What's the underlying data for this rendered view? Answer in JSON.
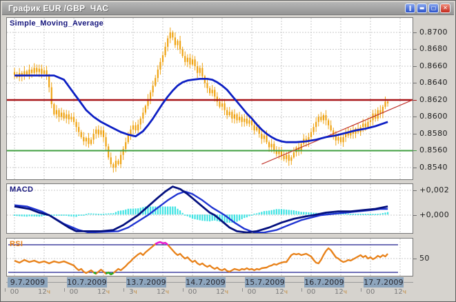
{
  "window": {
    "title": "График EUR /GBP  ЧАС",
    "controls": [
      {
        "name": "pause",
        "glyph": "‖",
        "style": "blue"
      },
      {
        "name": "minimize",
        "glyph": "▬",
        "style": "blue"
      },
      {
        "name": "maximize",
        "glyph": "▢",
        "style": "blue"
      },
      {
        "name": "close",
        "glyph": "✕",
        "style": "red"
      }
    ]
  },
  "panels": {
    "main": {
      "label": "Simple_Moving_Average"
    },
    "macd": {
      "label": "MACD"
    },
    "rsi": {
      "label": "RSI"
    }
  },
  "price_scale": {
    "ticks": [
      {
        "text": "0.8700",
        "price": 0.87
      },
      {
        "text": "0.8680",
        "price": 0.868
      },
      {
        "text": "0.8660",
        "price": 0.866
      },
      {
        "text": "0.8640",
        "price": 0.864
      },
      {
        "text": "0.8620",
        "price": 0.862
      },
      {
        "text": "0.8600",
        "price": 0.86
      },
      {
        "text": "0.8580",
        "price": 0.858
      },
      {
        "text": "0.8560",
        "price": 0.856
      },
      {
        "text": "0.8540",
        "price": 0.854
      }
    ]
  },
  "macd_scale": {
    "ticks": [
      {
        "text": "+0,002",
        "value": 0.002
      },
      {
        "text": "+0,000",
        "value": 0.0
      }
    ]
  },
  "rsi_scale": {
    "ticks": [
      {
        "text": "50",
        "value": 50
      }
    ]
  },
  "x_axis": {
    "days": [
      {
        "date": "9.7.2009",
        "times": [
          "00",
          "12ч"
        ]
      },
      {
        "date": "10.7.2009",
        "times": [
          "00",
          "12ч"
        ]
      },
      {
        "date": "13.7.2009",
        "times": [
          "3ч",
          "12ч"
        ]
      },
      {
        "date": "14.7.2009",
        "times": [
          "00",
          "12ч"
        ]
      },
      {
        "date": "15.7.2009",
        "times": [
          "00",
          "12ч"
        ]
      },
      {
        "date": "16.7.2009",
        "times": [
          "00",
          "12ч"
        ]
      },
      {
        "date": "17.7.2009",
        "times": [
          "00",
          "12ч"
        ]
      }
    ]
  },
  "colors": {
    "candle": "#efa312",
    "sma": "#0d1fc4",
    "macd": "#04107e",
    "signal": "#1f34d2",
    "histogram": "#3fe3e3",
    "resistance": "#a81418",
    "support": "#3f9f3f",
    "trendline": "#c03028",
    "rsi": "#e8821a",
    "rsi_overbought": "#e816d8",
    "rsi_oversold": "#22b022",
    "rsi_levels": "#1a1a8c",
    "grid": "#c9c9c9",
    "date_box_bg": "#8da5bd",
    "time_label": "#7a7a7a",
    "hour_suffix": "#c08a3e"
  },
  "chart_data": [
    {
      "type": "candlestick",
      "pair": "EUR/GBP",
      "timeframe": "1 hour",
      "overlay": "Simple_Moving_Average",
      "x_start": "9.7.2009 00:00",
      "x_end": "17.7.2009 08:00",
      "hours_per_candle": 1,
      "ylim": [
        0.8527,
        0.8717
      ],
      "y_ticks": [
        0.87,
        0.868,
        0.866,
        0.864,
        0.862,
        0.86,
        0.858,
        0.856,
        0.854
      ],
      "resistance_level": 0.862,
      "support_level": 0.856,
      "trendline": {
        "from_hour": 100,
        "from_price": 0.8544,
        "to_hour": 161,
        "to_price": 0.862
      },
      "closes": [
        0.865,
        0.8647,
        0.8652,
        0.8648,
        0.8654,
        0.865,
        0.8656,
        0.8652,
        0.8658,
        0.8653,
        0.8657,
        0.8651,
        0.8655,
        0.8648,
        0.8635,
        0.8615,
        0.8603,
        0.8608,
        0.86,
        0.8605,
        0.8598,
        0.8603,
        0.8597,
        0.86,
        0.8594,
        0.8588,
        0.8582,
        0.8576,
        0.8571,
        0.8575,
        0.8568,
        0.8573,
        0.858,
        0.8585,
        0.8579,
        0.8584,
        0.8576,
        0.8565,
        0.8552,
        0.8544,
        0.854,
        0.8548,
        0.8544,
        0.8555,
        0.8562,
        0.857,
        0.8578,
        0.8585,
        0.859,
        0.8584,
        0.8591,
        0.8598,
        0.8605,
        0.8613,
        0.8621,
        0.8629,
        0.8637,
        0.8646,
        0.8656,
        0.8665,
        0.8673,
        0.8683,
        0.8693,
        0.87,
        0.8694,
        0.8685,
        0.869,
        0.868,
        0.8672,
        0.8665,
        0.867,
        0.8662,
        0.8668,
        0.866,
        0.8652,
        0.8658,
        0.8648,
        0.864,
        0.8634,
        0.8628,
        0.8632,
        0.8624,
        0.8618,
        0.8612,
        0.8616,
        0.8608,
        0.8602,
        0.8606,
        0.8598,
        0.8603,
        0.8596,
        0.86,
        0.8594,
        0.8598,
        0.8592,
        0.8596,
        0.859,
        0.8584,
        0.8588,
        0.858,
        0.8574,
        0.8578,
        0.857,
        0.8564,
        0.8568,
        0.856,
        0.8556,
        0.856,
        0.8554,
        0.855,
        0.8555,
        0.8548,
        0.8552,
        0.8558,
        0.8564,
        0.856,
        0.8568,
        0.8574,
        0.857,
        0.8576,
        0.8582,
        0.8588,
        0.8594,
        0.86,
        0.8596,
        0.8602,
        0.8596,
        0.859,
        0.8584,
        0.8578,
        0.8572,
        0.8576,
        0.857,
        0.8576,
        0.8582,
        0.8578,
        0.8584,
        0.858,
        0.8586,
        0.8582,
        0.8588,
        0.8592,
        0.8588,
        0.8594,
        0.8596,
        0.8604,
        0.8598,
        0.8608,
        0.8604,
        0.8612,
        0.8618,
        0.8616
      ],
      "sma": [
        [
          0,
          0.8649
        ],
        [
          16,
          0.8649
        ],
        [
          20,
          0.8644
        ],
        [
          23,
          0.8632
        ],
        [
          26,
          0.862
        ],
        [
          29,
          0.8608
        ],
        [
          32,
          0.86
        ],
        [
          35,
          0.8594
        ],
        [
          39,
          0.8588
        ],
        [
          43,
          0.8582
        ],
        [
          46,
          0.8579
        ],
        [
          49,
          0.8577
        ],
        [
          52,
          0.8583
        ],
        [
          54,
          0.859
        ],
        [
          56,
          0.8598
        ],
        [
          58,
          0.8607
        ],
        [
          60,
          0.8616
        ],
        [
          62,
          0.8624
        ],
        [
          64,
          0.8631
        ],
        [
          66,
          0.8637
        ],
        [
          68,
          0.8641
        ],
        [
          70,
          0.8643
        ],
        [
          72,
          0.8644
        ],
        [
          75,
          0.8645
        ],
        [
          78,
          0.8645
        ],
        [
          80,
          0.8644
        ],
        [
          82,
          0.8641
        ],
        [
          84,
          0.8637
        ],
        [
          86,
          0.8632
        ],
        [
          88,
          0.8625
        ],
        [
          90,
          0.8618
        ],
        [
          92,
          0.8611
        ],
        [
          94,
          0.8604
        ],
        [
          96,
          0.8598
        ],
        [
          98,
          0.8591
        ],
        [
          100,
          0.8585
        ],
        [
          102,
          0.858
        ],
        [
          104,
          0.8576
        ],
        [
          106,
          0.8573
        ],
        [
          108,
          0.8571
        ],
        [
          110,
          0.857
        ],
        [
          114,
          0.857
        ],
        [
          118,
          0.8571
        ],
        [
          122,
          0.8573
        ],
        [
          126,
          0.8576
        ],
        [
          130,
          0.8578
        ],
        [
          134,
          0.8581
        ],
        [
          138,
          0.8584
        ],
        [
          142,
          0.8586
        ],
        [
          146,
          0.8589
        ],
        [
          149,
          0.8592
        ],
        [
          151,
          0.8594
        ]
      ]
    },
    {
      "type": "line+histogram",
      "name": "MACD",
      "ylim": [
        -0.0014,
        0.0025
      ],
      "y_ticks": [
        0.002,
        0.0
      ],
      "histogram": "macd_minus_signal",
      "macd_line": [
        [
          0,
          0.0007
        ],
        [
          6,
          0.0005
        ],
        [
          10,
          0.0002
        ],
        [
          14,
          0.0
        ],
        [
          18,
          -0.0005
        ],
        [
          22,
          -0.001
        ],
        [
          25,
          -0.0013
        ],
        [
          35,
          -0.0013
        ],
        [
          40,
          -0.0012
        ],
        [
          44,
          -0.0008
        ],
        [
          47,
          -0.0004
        ],
        [
          50,
          0.0
        ],
        [
          54,
          0.0007
        ],
        [
          58,
          0.0014
        ],
        [
          61,
          0.0019
        ],
        [
          64,
          0.0023
        ],
        [
          67,
          0.0021
        ],
        [
          70,
          0.0017
        ],
        [
          73,
          0.0012
        ],
        [
          76,
          0.0007
        ],
        [
          79,
          0.0002
        ],
        [
          81,
          0.0
        ],
        [
          84,
          -0.0005
        ],
        [
          87,
          -0.001
        ],
        [
          90,
          -0.0013
        ],
        [
          94,
          -0.0014
        ],
        [
          98,
          -0.0013
        ],
        [
          103,
          -0.001
        ],
        [
          108,
          -0.0006
        ],
        [
          113,
          -0.0003
        ],
        [
          118,
          -0.0001
        ],
        [
          121,
          0.0
        ],
        [
          126,
          0.0002
        ],
        [
          131,
          0.0003
        ],
        [
          136,
          0.0003
        ],
        [
          141,
          0.0004
        ],
        [
          146,
          0.0005
        ],
        [
          151,
          0.0007
        ]
      ],
      "signal_line": [
        [
          0,
          0.0008
        ],
        [
          5,
          0.0007
        ],
        [
          11,
          0.0003
        ],
        [
          15,
          -0.0001
        ],
        [
          20,
          -0.0007
        ],
        [
          26,
          -0.0012
        ],
        [
          30,
          -0.0014
        ],
        [
          42,
          -0.0013
        ],
        [
          46,
          -0.001
        ],
        [
          50,
          -0.0005
        ],
        [
          54,
          0.0
        ],
        [
          58,
          0.0006
        ],
        [
          62,
          0.0012
        ],
        [
          66,
          0.0017
        ],
        [
          69,
          0.0019
        ],
        [
          72,
          0.0017
        ],
        [
          76,
          0.0012
        ],
        [
          80,
          0.0006
        ],
        [
          85,
          0.0
        ],
        [
          89,
          -0.0006
        ],
        [
          93,
          -0.0011
        ],
        [
          97,
          -0.0014
        ],
        [
          101,
          -0.0014
        ],
        [
          106,
          -0.0012
        ],
        [
          111,
          -0.0008
        ],
        [
          116,
          -0.0004
        ],
        [
          120,
          -0.0002
        ],
        [
          124,
          0.0
        ],
        [
          129,
          0.0001
        ],
        [
          134,
          0.0002
        ],
        [
          139,
          0.0003
        ],
        [
          144,
          0.0004
        ],
        [
          148,
          0.0005
        ],
        [
          151,
          0.0005
        ]
      ]
    },
    {
      "type": "line",
      "name": "RSI",
      "ylim": [
        25,
        79
      ],
      "levels": {
        "overbought": 70,
        "middle": 50,
        "oversold": 30
      },
      "values": [
        [
          0,
          47
        ],
        [
          2,
          44
        ],
        [
          4,
          48
        ],
        [
          6,
          45
        ],
        [
          8,
          47
        ],
        [
          10,
          44
        ],
        [
          12,
          46
        ],
        [
          14,
          43
        ],
        [
          16,
          46
        ],
        [
          18,
          44
        ],
        [
          20,
          46
        ],
        [
          22,
          43
        ],
        [
          24,
          40
        ],
        [
          25,
          36
        ],
        [
          26,
          33
        ],
        [
          27,
          35
        ],
        [
          28,
          31
        ],
        [
          29,
          29
        ],
        [
          30,
          31
        ],
        [
          31,
          33
        ],
        [
          32,
          30
        ],
        [
          33,
          28
        ],
        [
          34,
          31
        ],
        [
          35,
          34
        ],
        [
          36,
          31
        ],
        [
          37,
          28
        ],
        [
          38,
          30
        ],
        [
          39,
          27
        ],
        [
          40,
          29
        ],
        [
          41,
          32
        ],
        [
          42,
          35
        ],
        [
          43,
          33
        ],
        [
          44,
          36
        ],
        [
          45,
          39
        ],
        [
          46,
          43
        ],
        [
          47,
          46
        ],
        [
          48,
          50
        ],
        [
          49,
          53
        ],
        [
          50,
          56
        ],
        [
          51,
          58
        ],
        [
          52,
          55
        ],
        [
          53,
          59
        ],
        [
          54,
          62
        ],
        [
          55,
          65
        ],
        [
          56,
          68
        ],
        [
          57,
          71
        ],
        [
          58,
          73
        ],
        [
          59,
          74
        ],
        [
          60,
          72
        ],
        [
          61,
          73
        ],
        [
          62,
          70
        ],
        [
          63,
          66
        ],
        [
          64,
          62
        ],
        [
          65,
          58
        ],
        [
          66,
          55
        ],
        [
          67,
          57
        ],
        [
          68,
          53
        ],
        [
          69,
          50
        ],
        [
          70,
          52
        ],
        [
          71,
          48
        ],
        [
          72,
          45
        ],
        [
          73,
          47
        ],
        [
          74,
          43
        ],
        [
          75,
          41
        ],
        [
          76,
          43
        ],
        [
          77,
          40
        ],
        [
          78,
          38
        ],
        [
          79,
          40
        ],
        [
          80,
          37
        ],
        [
          81,
          35
        ],
        [
          82,
          37
        ],
        [
          83,
          34
        ],
        [
          84,
          33
        ],
        [
          85,
          35
        ],
        [
          86,
          32
        ],
        [
          87,
          31
        ],
        [
          88,
          33
        ],
        [
          89,
          35
        ],
        [
          90,
          34
        ],
        [
          91,
          33
        ],
        [
          92,
          35
        ],
        [
          93,
          34
        ],
        [
          94,
          36
        ],
        [
          95,
          34
        ],
        [
          96,
          35
        ],
        [
          97,
          33
        ],
        [
          98,
          35
        ],
        [
          99,
          34
        ],
        [
          100,
          36
        ],
        [
          102,
          37
        ],
        [
          103,
          39
        ],
        [
          104,
          40
        ],
        [
          105,
          42
        ],
        [
          106,
          41
        ],
        [
          107,
          43
        ],
        [
          108,
          44
        ],
        [
          109,
          45
        ],
        [
          110,
          45
        ],
        [
          111,
          50
        ],
        [
          112,
          55
        ],
        [
          113,
          57
        ],
        [
          114,
          56
        ],
        [
          115,
          57
        ],
        [
          116,
          55
        ],
        [
          117,
          56
        ],
        [
          118,
          57
        ],
        [
          119,
          55
        ],
        [
          120,
          53
        ],
        [
          121,
          48
        ],
        [
          122,
          44
        ],
        [
          123,
          43
        ],
        [
          124,
          48
        ],
        [
          125,
          55
        ],
        [
          126,
          61
        ],
        [
          127,
          65
        ],
        [
          128,
          62
        ],
        [
          129,
          57
        ],
        [
          130,
          52
        ],
        [
          131,
          50
        ],
        [
          132,
          47
        ],
        [
          133,
          45
        ],
        [
          134,
          46
        ],
        [
          135,
          48
        ],
        [
          136,
          47
        ],
        [
          137,
          49
        ],
        [
          138,
          51
        ],
        [
          139,
          53
        ],
        [
          140,
          55
        ],
        [
          141,
          52
        ],
        [
          142,
          54
        ],
        [
          143,
          50
        ],
        [
          144,
          52
        ],
        [
          145,
          49
        ],
        [
          146,
          51
        ],
        [
          147,
          54
        ],
        [
          148,
          52
        ],
        [
          149,
          55
        ],
        [
          150,
          53
        ],
        [
          151,
          57
        ]
      ]
    }
  ]
}
